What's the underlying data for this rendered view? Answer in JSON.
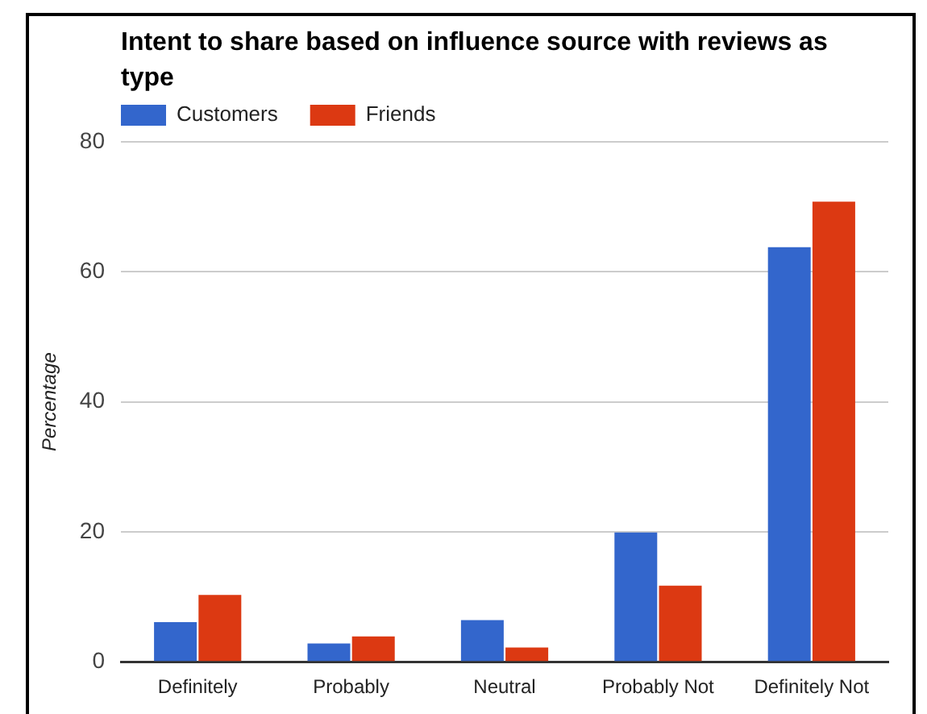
{
  "chart_data": {
    "type": "bar",
    "title": "Intent to share based on influence source with reviews as type",
    "ylabel": "Percentage",
    "categories": [
      "Definitely",
      "Probably",
      "Neutral",
      "Probably Not",
      "Definitely Not"
    ],
    "series": [
      {
        "name": "Customers",
        "color": "#3366cc",
        "values": [
          6.1,
          2.8,
          6.4,
          19.9,
          63.8
        ]
      },
      {
        "name": "Friends",
        "color": "#dc3912",
        "values": [
          10.3,
          3.9,
          2.2,
          11.7,
          70.8
        ]
      }
    ],
    "ylim": [
      0,
      80
    ],
    "yticks": [
      0,
      20,
      40,
      60,
      80
    ],
    "grid": "y",
    "legend": "top left"
  }
}
